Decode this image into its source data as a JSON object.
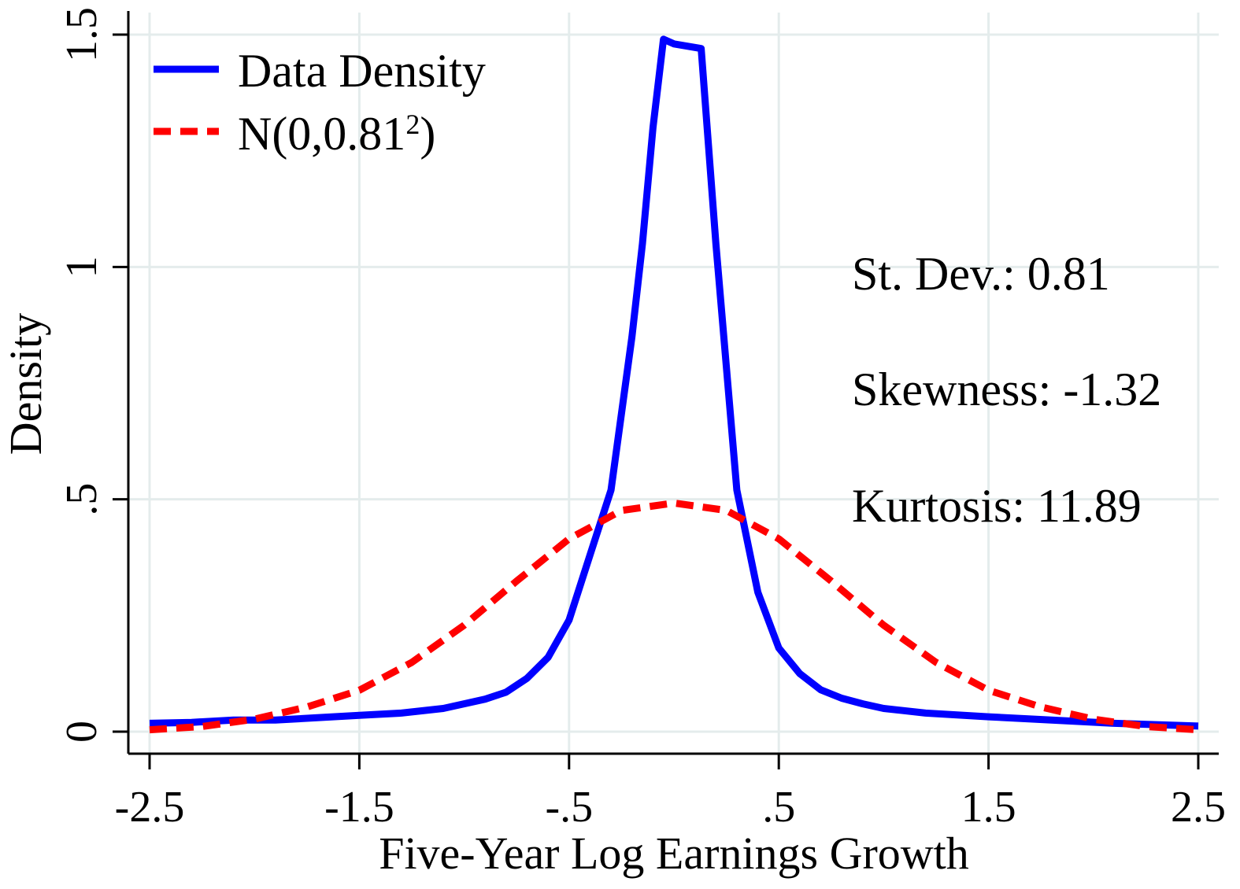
{
  "chart_data": {
    "type": "line",
    "title": "",
    "xlabel": "Five-Year Log Earnings Growth",
    "ylabel": "Density",
    "xlim": [
      -2.5,
      2.5
    ],
    "ylim": [
      0,
      1.5
    ],
    "grid": true,
    "x_ticks": [
      -2.5,
      -1.5,
      -0.5,
      0.5,
      1.5,
      2.5
    ],
    "x_tick_labels": [
      "-2.5",
      "-1.5",
      "-.5",
      ".5",
      "1.5",
      "2.5"
    ],
    "y_ticks": [
      0,
      0.5,
      1,
      1.5
    ],
    "y_tick_labels": [
      "0",
      ".5",
      "1",
      "1.5"
    ],
    "legend_position": "top-left",
    "series": [
      {
        "name": "Data Density",
        "style": "solid",
        "color": "#0000ff",
        "x": [
          -2.5,
          -2.3,
          -2.1,
          -1.9,
          -1.7,
          -1.5,
          -1.3,
          -1.1,
          -0.9,
          -0.8,
          -0.7,
          -0.6,
          -0.5,
          -0.4,
          -0.3,
          -0.2,
          -0.15,
          -0.1,
          -0.05,
          0.0,
          0.13,
          0.2,
          0.3,
          0.4,
          0.5,
          0.6,
          0.7,
          0.8,
          0.9,
          1.0,
          1.2,
          1.5,
          1.8,
          2.1,
          2.5
        ],
        "values": [
          0.018,
          0.02,
          0.025,
          0.025,
          0.03,
          0.035,
          0.04,
          0.05,
          0.07,
          0.085,
          0.115,
          0.16,
          0.24,
          0.38,
          0.52,
          0.85,
          1.05,
          1.3,
          1.49,
          1.48,
          1.47,
          1.05,
          0.52,
          0.3,
          0.18,
          0.125,
          0.09,
          0.072,
          0.06,
          0.05,
          0.04,
          0.032,
          0.025,
          0.018,
          0.012
        ]
      },
      {
        "name": "N(0,0.81²)",
        "style": "dashed",
        "color": "#ff0000",
        "x": [
          -2.5,
          -2.25,
          -2.0,
          -1.75,
          -1.5,
          -1.25,
          -1.0,
          -0.75,
          -0.5,
          -0.25,
          0.0,
          0.25,
          0.5,
          0.75,
          1.0,
          1.25,
          1.5,
          1.75,
          2.0,
          2.25,
          2.5
        ],
        "values": [
          0.004,
          0.011,
          0.027,
          0.053,
          0.089,
          0.149,
          0.229,
          0.324,
          0.415,
          0.476,
          0.492,
          0.476,
          0.415,
          0.324,
          0.229,
          0.149,
          0.089,
          0.053,
          0.027,
          0.011,
          0.004
        ]
      }
    ],
    "legend": {
      "entry1_label": "Data Density",
      "entry2_prefix": "N(0,0.81",
      "entry2_sup": "2",
      "entry2_suffix": ")"
    },
    "annotations": {
      "st_dev": "St. Dev.: 0.81",
      "skewness": "Skewness: -1.32",
      "kurtosis": "Kurtosis: 11.89"
    }
  }
}
